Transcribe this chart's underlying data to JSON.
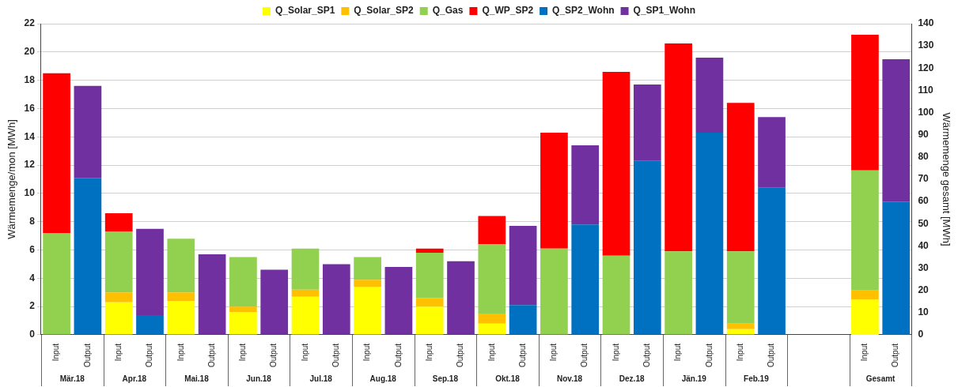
{
  "chart_data": {
    "type": "bar",
    "stacked": true,
    "ylabel": "Wärmemenge/mon [MWh]",
    "y2label": "Wärmemenge gesamt [MWh]",
    "categories": [
      "Input",
      "Output",
      "Input",
      "Output",
      "Input",
      "Output",
      "Input",
      "Output",
      "Input",
      "Output",
      "Input",
      "Output",
      "Input",
      "Output",
      "Input",
      "Output",
      "Input",
      "Output",
      "Input",
      "Output",
      "Input",
      "Output",
      "Input",
      "Output",
      null,
      null,
      "Input",
      "Output"
    ],
    "annotations": [
      "Mär.18",
      "Apr.18",
      "Mai.18",
      "Jun.18",
      "Jul.18",
      "Aug.18",
      "Sep.18",
      "Okt.18",
      "Nov.18",
      "Dez.18",
      "Jän.19",
      "Feb.19",
      "Gesamt"
    ],
    "series": [
      {
        "name": "Q_Solar_SP1",
        "color": "#ffff00",
        "values": [
          null,
          null,
          2.3,
          null,
          2.4,
          null,
          1.6,
          null,
          2.7,
          null,
          3.4,
          null,
          2.0,
          null,
          0.8,
          null,
          null,
          null,
          null,
          null,
          null,
          null,
          0.4,
          null,
          null,
          null,
          null,
          null
        ]
      },
      {
        "name": "Q_Solar_SP2",
        "color": "#ffc000",
        "values": [
          null,
          null,
          0.7,
          null,
          0.6,
          null,
          0.4,
          null,
          0.5,
          null,
          0.5,
          null,
          0.6,
          null,
          0.7,
          null,
          null,
          null,
          null,
          null,
          null,
          null,
          0.4,
          null,
          null,
          null,
          null,
          null
        ]
      },
      {
        "name": "Q_Gas",
        "color": "#92d050",
        "values": [
          7.2,
          null,
          4.3,
          null,
          3.8,
          null,
          3.5,
          null,
          2.9,
          null,
          1.6,
          null,
          3.2,
          null,
          4.9,
          null,
          6.1,
          null,
          5.6,
          null,
          5.9,
          null,
          5.1,
          null,
          null,
          null,
          null,
          null
        ]
      },
      {
        "name": "Q_WP_SP2",
        "color": "#ff0000",
        "values": [
          11.3,
          null,
          1.3,
          null,
          null,
          null,
          null,
          null,
          null,
          null,
          null,
          null,
          0.3,
          null,
          2.0,
          null,
          8.2,
          null,
          13.0,
          null,
          14.7,
          null,
          10.5,
          null,
          null,
          null,
          null,
          null
        ]
      },
      {
        "name": "Q_SP2_Wohn",
        "color": "#0070c0",
        "values": [
          null,
          11.1,
          null,
          1.4,
          null,
          null,
          null,
          null,
          null,
          null,
          null,
          null,
          null,
          null,
          null,
          2.1,
          null,
          7.8,
          null,
          12.3,
          null,
          14.3,
          null,
          10.4,
          null,
          null,
          null,
          null
        ]
      },
      {
        "name": "Q_SP1_Wohn",
        "color": "#7030a0",
        "values": [
          null,
          6.5,
          null,
          6.1,
          null,
          5.7,
          null,
          4.6,
          null,
          5.0,
          null,
          4.8,
          null,
          5.2,
          null,
          5.6,
          null,
          5.6,
          null,
          5.4,
          null,
          5.3,
          null,
          5.0,
          null,
          null,
          null,
          null
        ]
      },
      {
        "axis": "y2",
        "color": "#ffff00",
        "values": [
          null,
          null,
          null,
          null,
          null,
          null,
          null,
          null,
          null,
          null,
          null,
          null,
          null,
          null,
          null,
          null,
          null,
          null,
          null,
          null,
          null,
          null,
          null,
          null,
          null,
          null,
          16,
          null
        ]
      },
      {
        "axis": "y2",
        "color": "#ffc000",
        "values": [
          null,
          null,
          null,
          null,
          null,
          null,
          null,
          null,
          null,
          null,
          null,
          null,
          null,
          null,
          null,
          null,
          null,
          null,
          null,
          null,
          null,
          null,
          null,
          null,
          null,
          null,
          4,
          null
        ]
      },
      {
        "axis": "y2",
        "color": "#92d050",
        "values": [
          null,
          null,
          null,
          null,
          null,
          null,
          null,
          null,
          null,
          null,
          null,
          null,
          null,
          null,
          null,
          null,
          null,
          null,
          null,
          null,
          null,
          null,
          null,
          null,
          null,
          null,
          54,
          null
        ]
      },
      {
        "axis": "y2",
        "color": "#ff0000",
        "values": [
          null,
          null,
          null,
          null,
          null,
          null,
          null,
          null,
          null,
          null,
          null,
          null,
          null,
          null,
          null,
          null,
          null,
          null,
          null,
          null,
          null,
          null,
          null,
          null,
          null,
          null,
          61,
          null
        ]
      },
      {
        "axis": "y2",
        "color": "#0070c0",
        "values": [
          null,
          null,
          null,
          null,
          null,
          null,
          null,
          null,
          null,
          null,
          null,
          null,
          null,
          null,
          null,
          null,
          null,
          null,
          null,
          null,
          null,
          null,
          null,
          null,
          null,
          null,
          null,
          60
        ]
      },
      {
        "axis": "y2",
        "color": "#7030a0",
        "values": [
          null,
          null,
          null,
          null,
          null,
          null,
          null,
          null,
          null,
          null,
          null,
          null,
          null,
          null,
          null,
          null,
          null,
          null,
          null,
          null,
          null,
          null,
          null,
          null,
          null,
          null,
          null,
          64
        ]
      }
    ],
    "ylim": [
      0,
      22
    ],
    "yticks": [
      0,
      2,
      4,
      6,
      8,
      10,
      12,
      14,
      16,
      18,
      20,
      22
    ],
    "y2lim": [
      0,
      140
    ],
    "y2ticks": [
      0,
      10,
      20,
      30,
      40,
      50,
      60,
      70,
      80,
      90,
      100,
      110,
      120,
      130,
      140
    ],
    "grid": "y",
    "legend": "top"
  }
}
